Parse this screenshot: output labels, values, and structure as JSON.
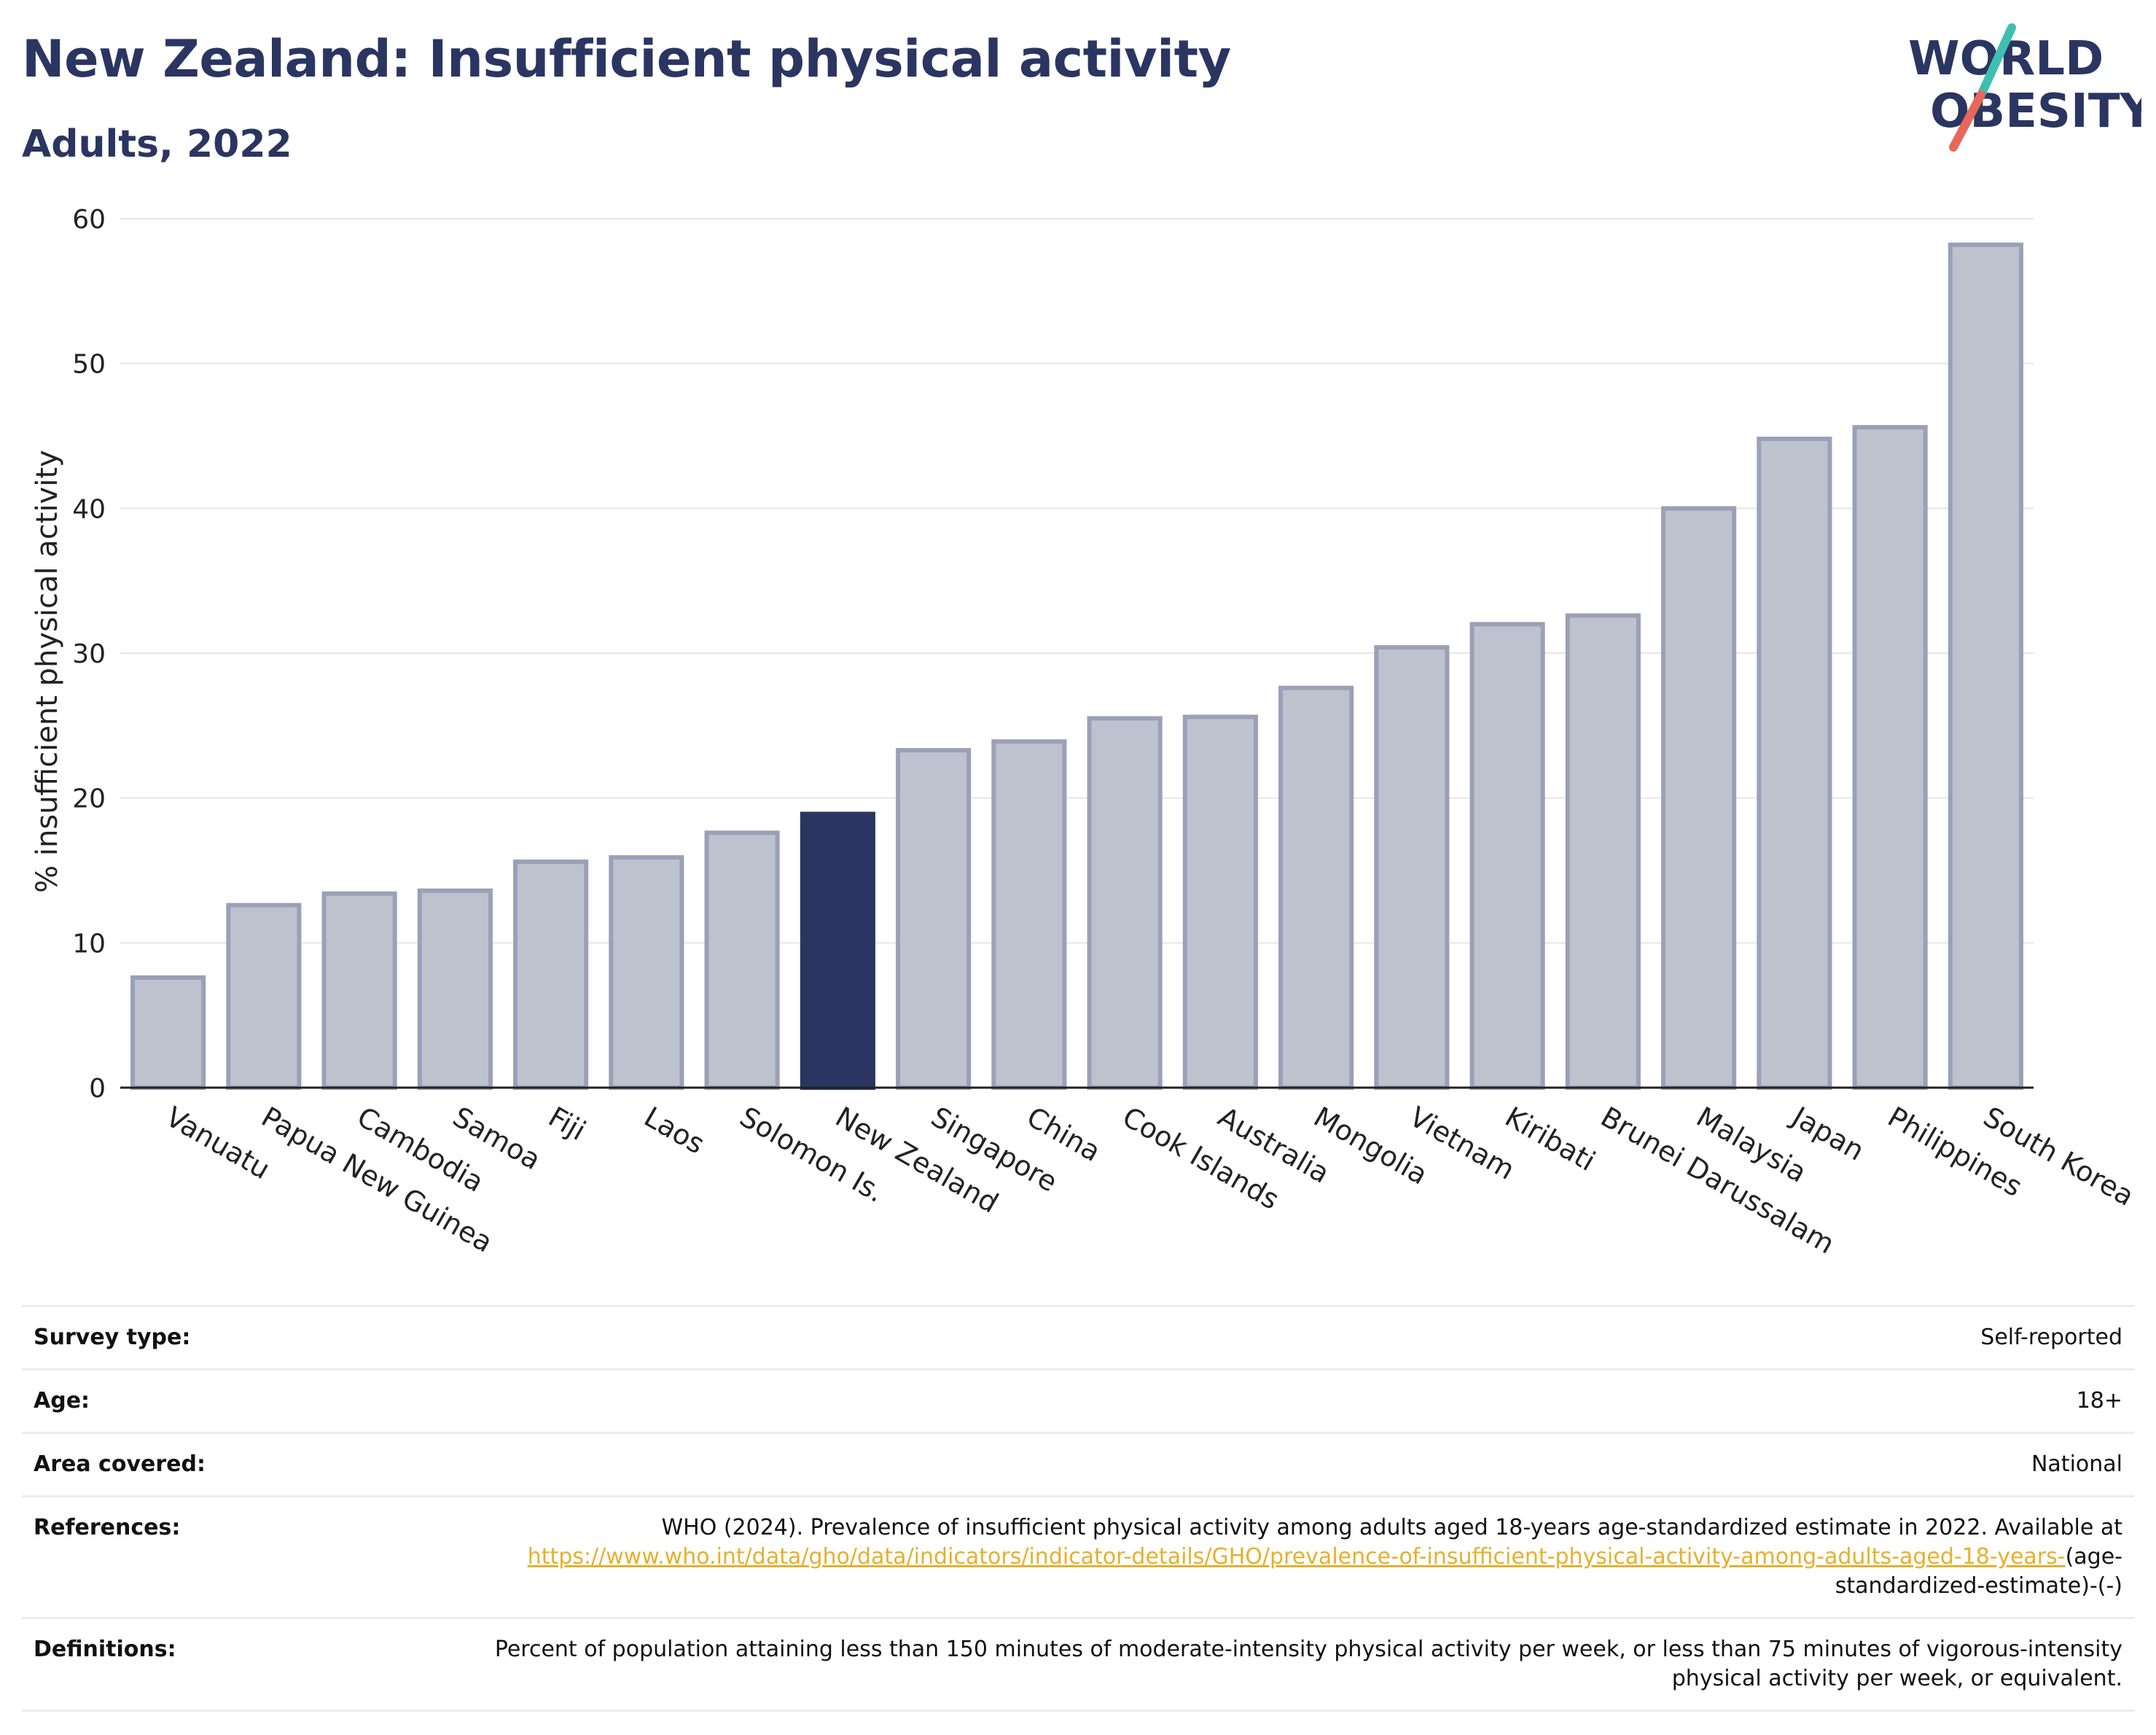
{
  "header": {
    "title": "New Zealand: Insufficient physical activity",
    "subtitle": "Adults, 2022"
  },
  "logo": {
    "line1": "WORLD",
    "line2": "OBESITY"
  },
  "colors": {
    "highlight": "#2b3561",
    "bar": "#bec2cf",
    "bar_edge": "#9aa0b7",
    "link": "#e6b02c"
  },
  "chart_data": {
    "type": "bar",
    "title": "New Zealand: Insufficient physical activity",
    "subtitle": "Adults, 2022",
    "xlabel": "",
    "ylabel": "% insufficient physical activity",
    "ylim": [
      0,
      60
    ],
    "yticks": [
      0,
      10,
      20,
      30,
      40,
      50,
      60
    ],
    "grid": true,
    "highlight_category": "New Zealand",
    "categories": [
      "Vanuatu",
      "Papua New Guinea",
      "Cambodia",
      "Samoa",
      "Fiji",
      "Laos",
      "Solomon Is.",
      "New Zealand",
      "Singapore",
      "China",
      "Cook Islands",
      "Australia",
      "Mongolia",
      "Vietnam",
      "Kiribati",
      "Brunei Darussalam",
      "Malaysia",
      "Japan",
      "Philippines",
      "South Korea"
    ],
    "values": [
      7.6,
      12.6,
      13.4,
      13.6,
      15.6,
      15.9,
      17.6,
      18.9,
      23.3,
      23.9,
      25.5,
      25.6,
      27.6,
      30.4,
      32.0,
      32.6,
      40.0,
      44.8,
      45.6,
      58.2
    ]
  },
  "meta": [
    {
      "key": "Survey type:",
      "value": "Self-reported"
    },
    {
      "key": "Age:",
      "value": "18+"
    },
    {
      "key": "Area covered:",
      "value": "National"
    }
  ],
  "references": {
    "key": "References:",
    "text": "WHO (2024). Prevalence of insufficient physical activity among adults aged 18-years age-standardized estimate in 2022. Available at",
    "link": "https://www.who.int/data/gho/data/indicators/indicator-details/GHO/prevalence-of-insufficient-physical-activity-among-adults-aged-18-years-",
    "tail": "(age-standardized-estimate)-(-)"
  },
  "definitions": {
    "key": "Definitions:",
    "value": "Percent of population attaining less than 150 minutes of moderate-intensity physical activity per week, or less than 75 minutes of vigorous-intensity physical activity per week, or equivalent."
  }
}
